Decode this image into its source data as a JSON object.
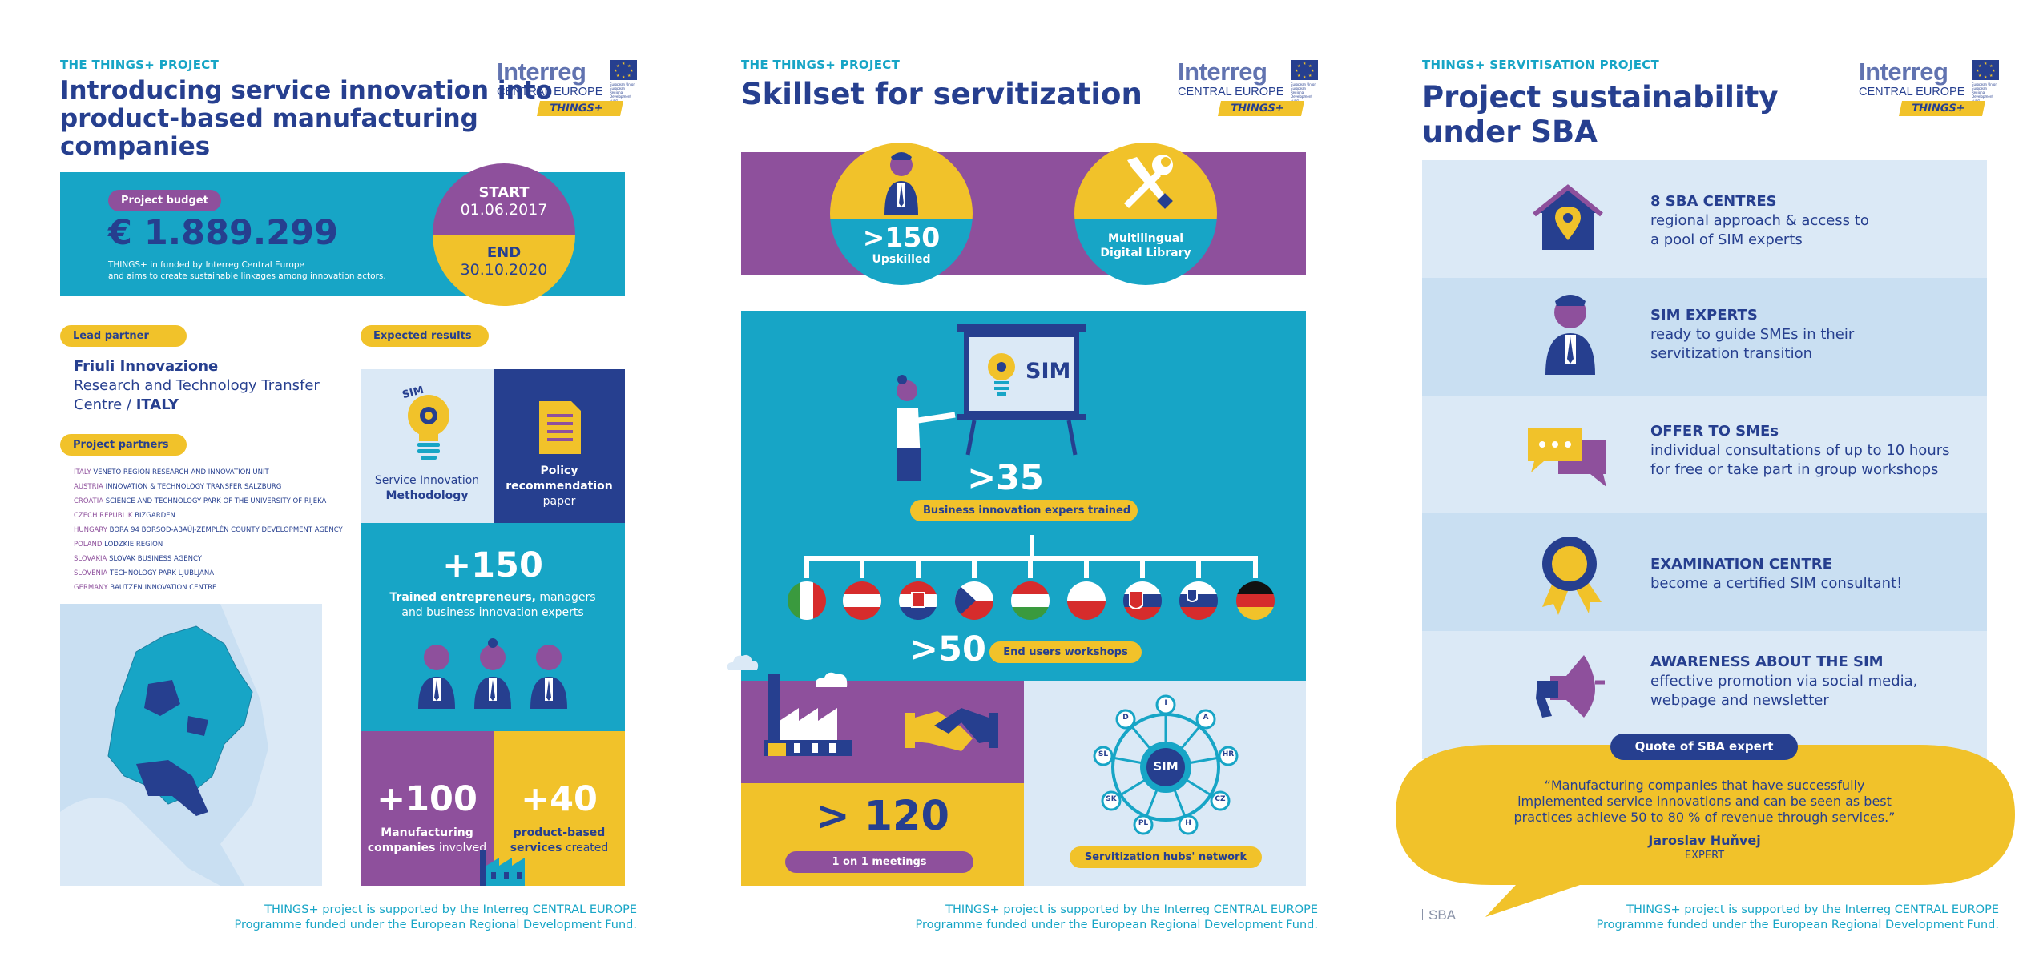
{
  "common": {
    "logo_word": "Interreg",
    "logo_region": "CENTRAL EUROPE",
    "logo_badge": "THINGS+",
    "logo_eu": "European Union European Regional Development Fund",
    "footer_line1": "THINGS+ project is supported by the Interreg CENTRAL EUROPE",
    "footer_line2": "Programme funded under the European Regional Development Fund."
  },
  "panel1": {
    "kicker": "THE THINGS+  PROJECT",
    "title_lines": [
      "Introducing service innovation into",
      "product-based manufacturing",
      "companies"
    ],
    "budget_label": "Project budget",
    "budget_value": "€ 1.889.299",
    "budget_note_1": "THINGS+ in funded by Interreg Central Europe",
    "budget_note_2": "and aims to create sustainable linkages among innovation actors.",
    "start_label": "START",
    "start_date": "01.06.2017",
    "end_label": "END",
    "end_date": "30.10.2020",
    "lead_label": "Lead partner",
    "lead_name": "Friuli Innovazione",
    "lead_line2": "Research and Technology Transfer",
    "lead_line3a": "Centre / ",
    "lead_line3b": "ITALY",
    "partners_label": "Project partners",
    "partners": [
      {
        "country": "ITALY",
        "name": "VENETO REGION RESEARCH AND INNOVATION UNIT"
      },
      {
        "country": "AUSTRIA",
        "name": "INNOVATION & TECHNOLOGY TRANSFER SALZBURG"
      },
      {
        "country": "CROATIA",
        "name": "SCIENCE AND TECHNOLOGY PARK OF THE UNIVERSITY OF RIJEKA"
      },
      {
        "country": "CZECH REPUBLIK",
        "name": "BIZGARDEN"
      },
      {
        "country": "HUNGARY",
        "name": "BORA 94 BORSOD-ABAÚJ-ZEMPLÉN COUNTY DEVELOPMENT AGENCY"
      },
      {
        "country": "POLAND",
        "name": "LODZKIE REGION"
      },
      {
        "country": "SLOVAKIA",
        "name": "SLOVAK BUSINESS AGENCY"
      },
      {
        "country": "SLOVENIA",
        "name": "TECHNOLOGY PARK LJUBLJANA"
      },
      {
        "country": "GERMANY",
        "name": "BAUTZEN INNOVATION CENTRE"
      }
    ],
    "results_label": "Expected results",
    "sim_tag": "SIM",
    "method_line1": "Service Innovation",
    "method_line2": "Methodology",
    "policy_line1": "Policy",
    "policy_line2": "recommendation",
    "policy_line3": "paper",
    "trained_num": "+150",
    "trained_line1a": "Trained entrepreneurs,",
    "trained_line1b": " managers",
    "trained_line2": "and business innovation experts",
    "manuf_num": "+100",
    "manuf_line1": "Manufacturing",
    "manuf_line2a": "companies",
    "manuf_line2b": " involved",
    "prod_num": "+40",
    "prod_line1": "product-based",
    "prod_line2a": "services",
    "prod_line2b": " created"
  },
  "panel2": {
    "kicker": "THE THINGS+  PROJECT",
    "title": "Skillset for servitization",
    "upskilled_num": ">150",
    "upskilled_label": "Upskilled",
    "library_line1": "Multilingual",
    "library_line2": "Digital Library",
    "board_text": "SIM",
    "experts_num": ">35",
    "experts_label": "Business innovation expers trained",
    "workshops_num": ">50",
    "workshops_label": "End users workshops",
    "meetings_num": "> 120",
    "meetings_label": "1 on 1 meetings",
    "hub_center": "SIM",
    "hub_nodes": [
      "I",
      "A",
      "HR",
      "CZ",
      "H",
      "PL",
      "SK",
      "SL",
      "D"
    ],
    "hub_label": "Servitization hubs' network"
  },
  "panel3": {
    "kicker": "THINGS+ SERVITISATION PROJECT",
    "title_lines": [
      "Project sustainability",
      "under SBA"
    ],
    "rows": [
      {
        "head": "8 SBA CENTRES",
        "l1": "regional approach & access to",
        "l2": "a pool of SIM experts"
      },
      {
        "head": "SIM EXPERTS",
        "l1": "ready to guide SMEs in their",
        "l2": "servitization transition"
      },
      {
        "head": "OFFER TO SMEs",
        "l1": "individual consultations of up to 10 hours",
        "l2": "for free or take part in group workshops"
      },
      {
        "head": "EXAMINATION CENTRE",
        "l1": "become a certified SIM consultant!",
        "l2": ""
      },
      {
        "head": "AWARENESS ABOUT THE SIM",
        "l1": "effective promotion via social media,",
        "l2": "webpage and newsletter"
      }
    ],
    "quote_label": "Quote of SBA expert",
    "quote_l1": "“Manufacturing companies that have successfully",
    "quote_l2": "implemented service innovations and can be seen as best",
    "quote_l3": "practices achieve 50 to 80 % of revenue through services.”",
    "quote_author": "Jaroslav Huňvej",
    "quote_role": "EXPERT",
    "sba_logo": "SBA"
  }
}
